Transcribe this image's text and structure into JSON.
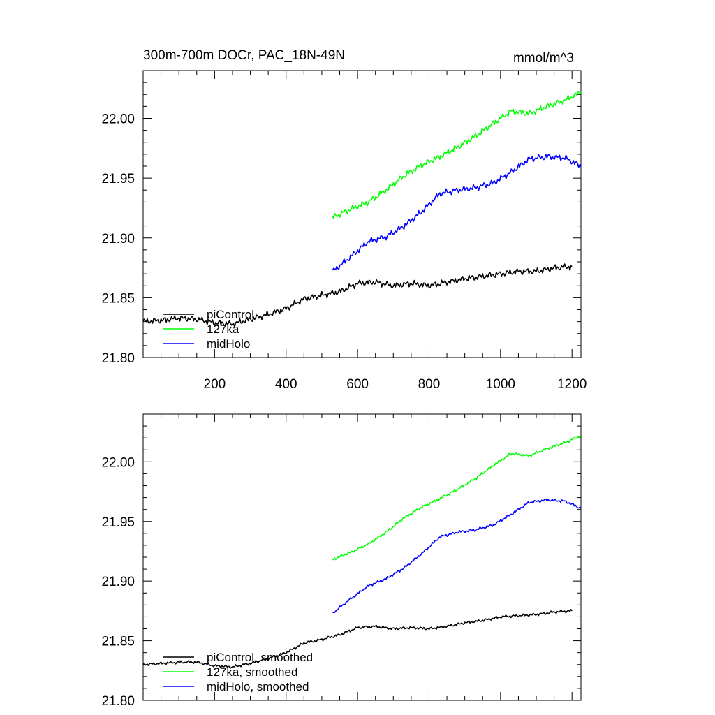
{
  "chart_data": [
    {
      "type": "line",
      "title": "300m-700m DOCr, PAC_18N-49N",
      "units": "mmol/m^3",
      "xlim": [
        0,
        1225
      ],
      "ylim": [
        21.8,
        22.04
      ],
      "xticks": [
        200,
        400,
        600,
        800,
        1000,
        1200
      ],
      "yticks": [
        21.8,
        21.85,
        21.9,
        21.95,
        22.0
      ],
      "ytick_labels": [
        "21.80",
        "21.85",
        "21.90",
        "21.95",
        "22.00"
      ],
      "grid": false,
      "legend_position": "bottom-left",
      "series": [
        {
          "name": "piControl",
          "color": "#000000",
          "x": [
            0,
            50,
            100,
            150,
            200,
            250,
            300,
            350,
            400,
            450,
            500,
            550,
            600,
            650,
            700,
            750,
            800,
            850,
            900,
            950,
            1000,
            1050,
            1100,
            1150,
            1200
          ],
          "y": [
            21.83,
            21.831,
            21.833,
            21.832,
            21.829,
            21.828,
            21.832,
            21.836,
            21.841,
            21.849,
            21.852,
            21.855,
            21.862,
            21.863,
            21.86,
            21.862,
            21.86,
            21.863,
            21.866,
            21.868,
            21.87,
            21.872,
            21.872,
            21.875,
            21.876
          ]
        },
        {
          "name": "127ka",
          "color": "#00ff00",
          "x": [
            530,
            580,
            630,
            680,
            730,
            780,
            830,
            880,
            930,
            980,
            1030,
            1080,
            1130,
            1180,
            1225
          ],
          "y": [
            21.917,
            21.924,
            21.93,
            21.94,
            21.952,
            21.961,
            21.968,
            21.976,
            21.985,
            21.996,
            22.006,
            22.004,
            22.01,
            22.015,
            22.022
          ]
        },
        {
          "name": "midHolo",
          "color": "#0000ff",
          "x": [
            530,
            580,
            630,
            680,
            730,
            780,
            830,
            880,
            930,
            980,
            1030,
            1080,
            1130,
            1180,
            1225
          ],
          "y": [
            21.872,
            21.884,
            21.897,
            21.901,
            21.91,
            21.922,
            21.937,
            21.94,
            21.942,
            21.946,
            21.955,
            21.966,
            21.968,
            21.967,
            21.96
          ]
        }
      ]
    },
    {
      "type": "line",
      "xlim": [
        0,
        1225
      ],
      "ylim": [
        21.8,
        22.04
      ],
      "xticks": [
        200,
        400,
        600,
        800,
        1000,
        1200
      ],
      "yticks": [
        21.8,
        21.85,
        21.9,
        21.95,
        22.0
      ],
      "ytick_labels": [
        "21.80",
        "21.85",
        "21.90",
        "21.95",
        "22.00"
      ],
      "grid": false,
      "legend_position": "bottom-left",
      "series": [
        {
          "name": "piControl, smoothed",
          "color": "#000000",
          "x": [
            0,
            50,
            100,
            150,
            200,
            250,
            300,
            350,
            400,
            450,
            500,
            550,
            600,
            650,
            700,
            750,
            800,
            850,
            900,
            950,
            1000,
            1050,
            1100,
            1150,
            1200
          ],
          "y": [
            21.83,
            21.831,
            21.832,
            21.832,
            21.829,
            21.828,
            21.831,
            21.835,
            21.84,
            21.848,
            21.851,
            21.855,
            21.861,
            21.862,
            21.86,
            21.861,
            21.86,
            21.862,
            21.865,
            21.867,
            21.87,
            21.871,
            21.872,
            21.874,
            21.875
          ]
        },
        {
          "name": "127ka, smoothed",
          "color": "#00ff00",
          "x": [
            530,
            580,
            630,
            680,
            730,
            780,
            830,
            880,
            930,
            980,
            1030,
            1080,
            1130,
            1180,
            1225
          ],
          "y": [
            21.918,
            21.924,
            21.931,
            21.941,
            21.953,
            21.962,
            21.969,
            21.977,
            21.986,
            21.997,
            22.007,
            22.005,
            22.011,
            22.016,
            22.022
          ]
        },
        {
          "name": "midHolo, smoothed",
          "color": "#0000ff",
          "x": [
            530,
            580,
            630,
            680,
            730,
            780,
            830,
            880,
            930,
            980,
            1030,
            1080,
            1130,
            1180,
            1225
          ],
          "y": [
            21.873,
            21.885,
            21.896,
            21.902,
            21.911,
            21.923,
            21.937,
            21.941,
            21.943,
            21.947,
            21.956,
            21.966,
            21.968,
            21.967,
            21.961
          ]
        }
      ]
    }
  ]
}
